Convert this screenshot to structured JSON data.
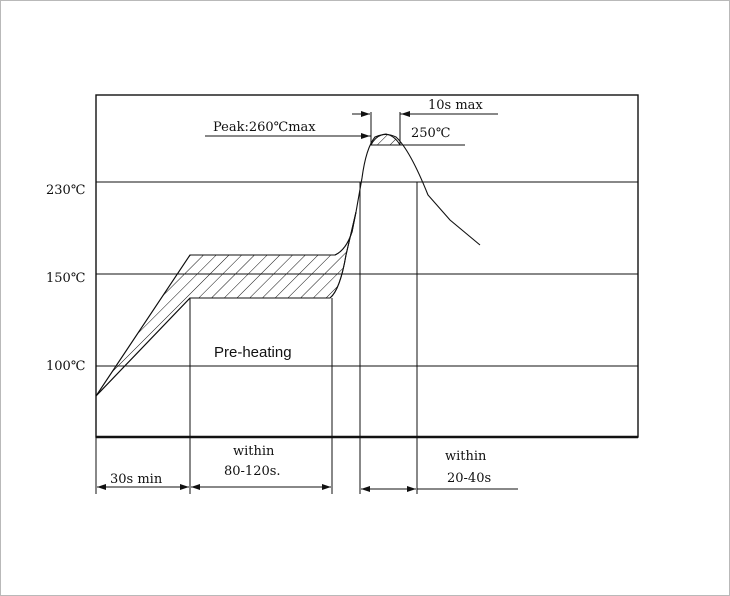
{
  "y_labels": {
    "t230": "230℃",
    "t150": "150℃",
    "t100": "100℃"
  },
  "annotations": {
    "peak": "Peak:260℃max",
    "ten_s": "10s max",
    "t250": "250℃",
    "preheat": "Pre-heating"
  },
  "timing": {
    "seg1": "30s min",
    "seg2_top": "within",
    "seg2_bottom": "80-120s.",
    "seg3_top": "within",
    "seg3_bottom": "20-40s"
  },
  "colors": {
    "line": "#111111",
    "frame": "#b9b9b9"
  }
}
